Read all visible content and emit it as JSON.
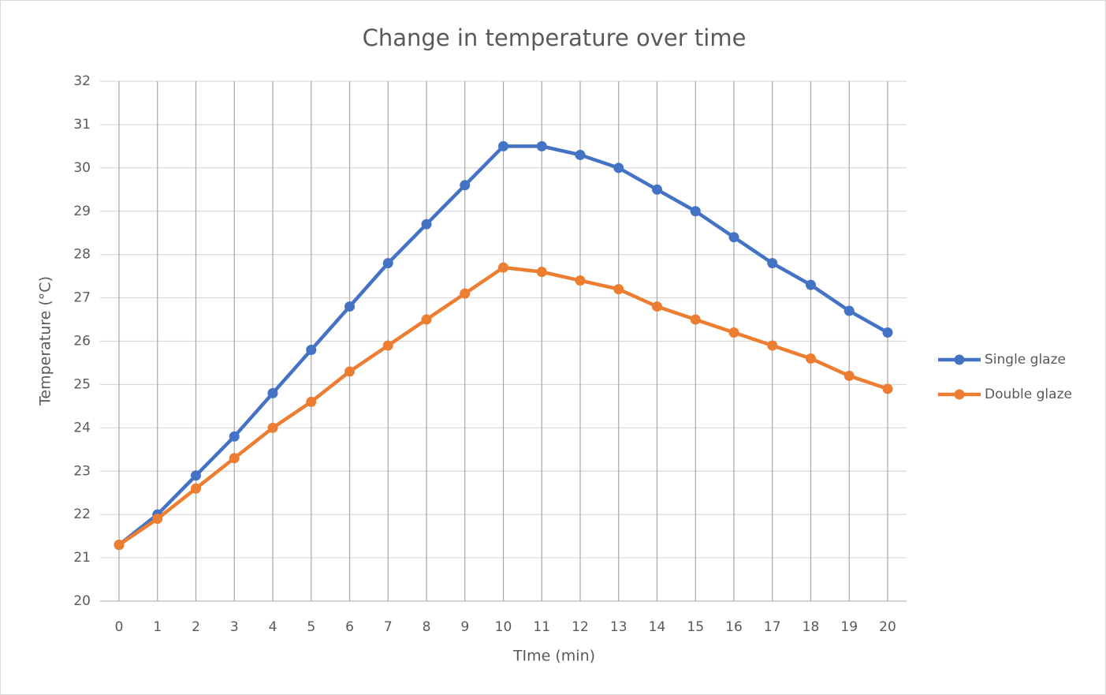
{
  "chart_data": {
    "type": "line",
    "title": "Change in temperature over time",
    "xlabel": "TIme (min)",
    "ylabel": "Temperature (°C)",
    "x": [
      0,
      1,
      2,
      3,
      4,
      5,
      6,
      7,
      8,
      9,
      10,
      11,
      12,
      13,
      14,
      15,
      16,
      17,
      18,
      19,
      20
    ],
    "xlim": [
      0,
      20
    ],
    "xticks": [
      0,
      1,
      2,
      3,
      4,
      5,
      6,
      7,
      8,
      9,
      10,
      11,
      12,
      13,
      14,
      15,
      16,
      17,
      18,
      19,
      20
    ],
    "ylim": [
      20,
      32
    ],
    "yticks": [
      20,
      21,
      22,
      23,
      24,
      25,
      26,
      27,
      28,
      29,
      30,
      31,
      32
    ],
    "grid": true,
    "legend": "right",
    "series": [
      {
        "name": "Single glaze",
        "color": "#4472c4",
        "values": [
          21.3,
          22.0,
          22.9,
          23.8,
          24.8,
          25.8,
          26.8,
          27.8,
          28.7,
          29.6,
          30.5,
          30.5,
          30.3,
          30.0,
          29.5,
          29.0,
          28.4,
          27.8,
          27.3,
          26.7,
          26.2
        ]
      },
      {
        "name": "Double glaze",
        "color": "#ed7d31",
        "values": [
          21.3,
          21.9,
          22.6,
          23.3,
          24.0,
          24.6,
          25.3,
          25.9,
          26.5,
          27.1,
          27.7,
          27.6,
          27.4,
          27.2,
          26.8,
          26.5,
          26.2,
          25.9,
          25.6,
          25.2,
          24.9
        ]
      }
    ]
  }
}
